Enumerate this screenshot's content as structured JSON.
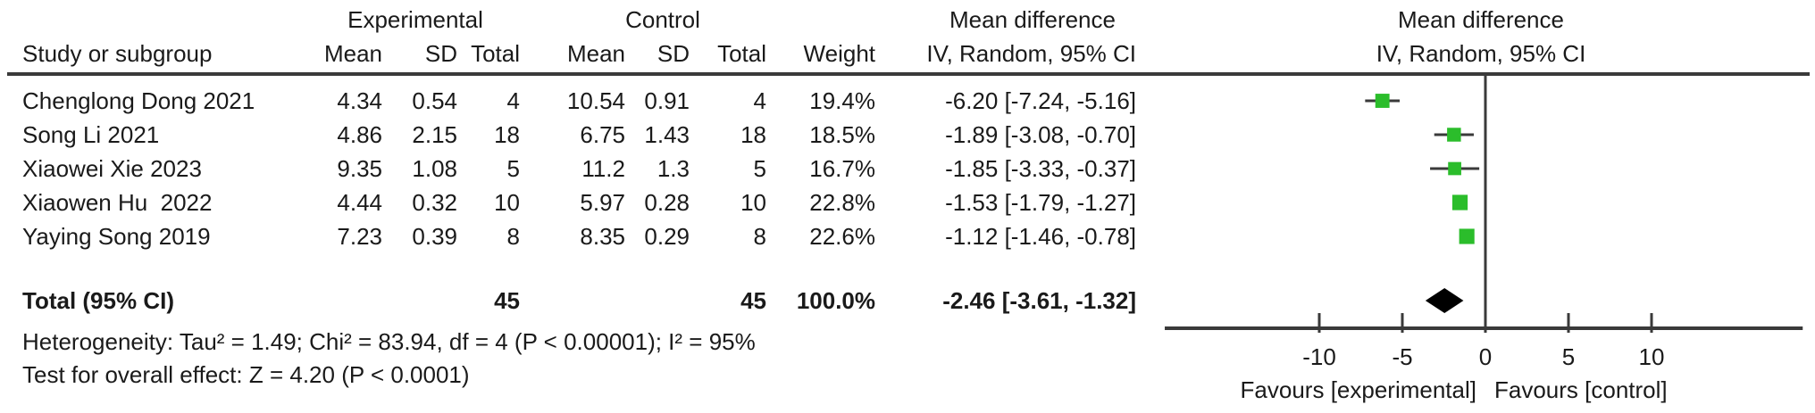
{
  "header": {
    "study_col": "Study or subgroup",
    "experimental": "Experimental",
    "control": "Control",
    "mean": "Mean",
    "sd": "SD",
    "total": "Total",
    "weight": "Weight",
    "md_text_col": "Mean difference",
    "iv_text_col": "IV, Random, 95% CI",
    "md_plot_col": "Mean difference",
    "iv_plot_col": "IV, Random, 95% CI"
  },
  "footer": {
    "heterogeneity": "Heterogeneity: Tau² = 1.49; Chi² = 83.94, df = 4 (P < 0.00001); I² = 95%",
    "overall_effect": "Test for overall effect: Z = 4.20 (P < 0.0001)"
  },
  "chart_data": {
    "type": "forest",
    "effect_measure": "Mean difference, IV, Random, 95% CI",
    "studies": [
      {
        "label": "Chenglong Dong 2021",
        "exp_mean": "4.34",
        "exp_sd": "0.54",
        "exp_total": "4",
        "ctl_mean": "10.54",
        "ctl_sd": "0.91",
        "ctl_total": "4",
        "weight": "19.4%",
        "ci_text": "-6.20 [-7.24, -5.16]",
        "md": -6.2,
        "ci_low": -7.24,
        "ci_high": -5.16,
        "weight_pct": 19.4
      },
      {
        "label": "Song Li 2021",
        "exp_mean": "4.86",
        "exp_sd": "2.15",
        "exp_total": "18",
        "ctl_mean": "6.75",
        "ctl_sd": "1.43",
        "ctl_total": "18",
        "weight": "18.5%",
        "ci_text": "-1.89 [-3.08, -0.70]",
        "md": -1.89,
        "ci_low": -3.08,
        "ci_high": -0.7,
        "weight_pct": 18.5
      },
      {
        "label": "Xiaowei Xie 2023",
        "exp_mean": "9.35",
        "exp_sd": "1.08",
        "exp_total": "5",
        "ctl_mean": "11.2",
        "ctl_sd": "1.3",
        "ctl_total": "5",
        "weight": "16.7%",
        "ci_text": "-1.85 [-3.33, -0.37]",
        "md": -1.85,
        "ci_low": -3.33,
        "ci_high": -0.37,
        "weight_pct": 16.7
      },
      {
        "label": "Xiaowen Hu  2022",
        "exp_mean": "4.44",
        "exp_sd": "0.32",
        "exp_total": "10",
        "ctl_mean": "5.97",
        "ctl_sd": "0.28",
        "ctl_total": "10",
        "weight": "22.8%",
        "ci_text": "-1.53 [-1.79, -1.27]",
        "md": -1.53,
        "ci_low": -1.79,
        "ci_high": -1.27,
        "weight_pct": 22.8
      },
      {
        "label": "Yaying Song 2019",
        "exp_mean": "7.23",
        "exp_sd": "0.39",
        "exp_total": "8",
        "ctl_mean": "8.35",
        "ctl_sd": "0.29",
        "ctl_total": "8",
        "weight": "22.6%",
        "ci_text": "-1.12 [-1.46, -0.78]",
        "md": -1.12,
        "ci_low": -1.46,
        "ci_high": -0.78,
        "weight_pct": 22.6
      }
    ],
    "total": {
      "label": "Total (95% CI)",
      "exp_total": "45",
      "ctl_total": "45",
      "weight": "100.0%",
      "ci_text": "-2.46 [-3.61, -1.32]",
      "md": -2.46,
      "ci_low": -3.61,
      "ci_high": -1.32
    },
    "axis": {
      "ticks": [
        -10,
        -5,
        0,
        5,
        10
      ],
      "xmin": -19.3,
      "xmax": 19.1,
      "zero": 0
    },
    "favours_left": "Favours [experimental]",
    "favours_right": "Favours [control]",
    "marker_color": "#2bbd2b",
    "ci_line_color": "#3a3a3a",
    "diamond_color": "#000000",
    "text_color": "#1a1a1a"
  }
}
